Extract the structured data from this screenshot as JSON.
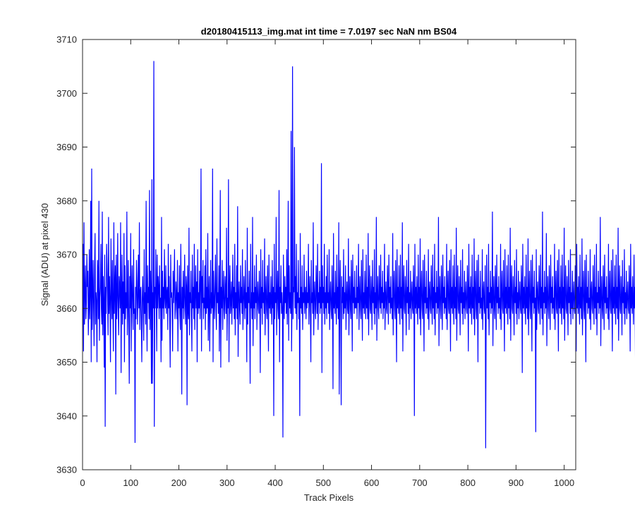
{
  "chart_data": {
    "type": "line",
    "title": "d20180415113_img.mat int time = 7.0197 sec  NaN nm BS04",
    "xlabel": "Track Pixels",
    "ylabel": "Signal (ADU) at pixel 430",
    "xlim": [
      0,
      1024
    ],
    "ylim": [
      3630,
      3710
    ],
    "xticks": [
      "0",
      "100",
      "200",
      "300",
      "400",
      "500",
      "600",
      "700",
      "800",
      "900",
      "1000"
    ],
    "yticks": [
      "3630",
      "3640",
      "3650",
      "3660",
      "3670",
      "3680",
      "3690",
      "3700",
      "3710"
    ],
    "grid": false,
    "series": [
      {
        "color": "#0000ff",
        "x_start": 1,
        "x_step": 1,
        "values": [
          3672,
          3652,
          3676,
          3657,
          3663,
          3668,
          3658,
          3661,
          3670,
          3664,
          3667,
          3655,
          3660,
          3671,
          3658,
          3663,
          3680,
          3650,
          3686,
          3656,
          3662,
          3669,
          3660,
          3653,
          3668,
          3674,
          3657,
          3663,
          3661,
          3650,
          3669,
          3666,
          3658,
          3680,
          3654,
          3662,
          3664,
          3672,
          3660,
          3657,
          3678,
          3655,
          3666,
          3661,
          3649,
          3670,
          3638,
          3664,
          3659,
          3672,
          3668,
          3662,
          3655,
          3677,
          3659,
          3666,
          3661,
          3650,
          3673,
          3663,
          3658,
          3669,
          3660,
          3652,
          3676,
          3659,
          3664,
          3668,
          3644,
          3670,
          3658,
          3662,
          3674,
          3660,
          3655,
          3666,
          3664,
          3660,
          3676,
          3648,
          3662,
          3670,
          3657,
          3665,
          3659,
          3674,
          3650,
          3668,
          3658,
          3663,
          3660,
          3678,
          3655,
          3661,
          3669,
          3657,
          3646,
          3666,
          3660,
          3674,
          3652,
          3663,
          3668,
          3660,
          3656,
          3671,
          3659,
          3660,
          3635,
          3664,
          3658,
          3669,
          3665,
          3657,
          3662,
          3670,
          3660,
          3676,
          3656,
          3663,
          3664,
          3658,
          3650,
          3662,
          3666,
          3660,
          3654,
          3671,
          3659,
          3663,
          3657,
          3680,
          3660,
          3652,
          3668,
          3661,
          3664,
          3658,
          3682,
          3656,
          3667,
          3662,
          3646,
          3684,
          3646,
          3663,
          3660,
          3706,
          3638,
          3664,
          3660,
          3671,
          3663,
          3652,
          3670,
          3660,
          3666,
          3664,
          3658,
          3668,
          3660,
          3662,
          3650,
          3677,
          3654,
          3667,
          3660,
          3664,
          3658,
          3671,
          3662,
          3660,
          3668,
          3659,
          3663,
          3664,
          3656,
          3672,
          3660,
          3666,
          3658,
          3649,
          3670,
          3662,
          3663,
          3660,
          3652,
          3667,
          3661,
          3664,
          3671,
          3658,
          3660,
          3665,
          3662,
          3658,
          3669,
          3652,
          3663,
          3660,
          3668,
          3659,
          3656,
          3672,
          3662,
          3644,
          3664,
          3660,
          3667,
          3658,
          3662,
          3670,
          3660,
          3657,
          3666,
          3664,
          3642,
          3668,
          3660,
          3658,
          3675,
          3655,
          3663,
          3661,
          3667,
          3659,
          3652,
          3670,
          3660,
          3664,
          3658,
          3672,
          3656,
          3662,
          3668,
          3660,
          3665,
          3650,
          3671,
          3659,
          3663,
          3660,
          3667,
          3658,
          3664,
          3686,
          3652,
          3666,
          3661,
          3669,
          3658,
          3662,
          3660,
          3668,
          3656,
          3671,
          3659,
          3664,
          3660,
          3674,
          3654,
          3662,
          3666,
          3652,
          3661,
          3669,
          3659,
          3663,
          3660,
          3686,
          3650,
          3667,
          3662,
          3658,
          3664,
          3670,
          3660,
          3656,
          3673,
          3661,
          3663,
          3659,
          3668,
          3652,
          3662,
          3682,
          3649,
          3664,
          3660,
          3669,
          3656,
          3662,
          3667,
          3660,
          3658,
          3666,
          3663,
          3659,
          3675,
          3654,
          3662,
          3660,
          3684,
          3650,
          3663,
          3668,
          3659,
          3661,
          3665,
          3657,
          3662,
          3670,
          3660,
          3664,
          3658,
          3672,
          3655,
          3663,
          3660,
          3668,
          3658,
          3679,
          3651,
          3662,
          3665,
          3660,
          3657,
          3668,
          3661,
          3664,
          3659,
          3671,
          3656,
          3660,
          3666,
          3662,
          3658,
          3669,
          3660,
          3663,
          3650,
          3675,
          3657,
          3664,
          3661,
          3667,
          3659,
          3646,
          3672,
          3660,
          3663,
          3658,
          3677,
          3653,
          3663,
          3660,
          3668,
          3658,
          3664,
          3661,
          3670,
          3656,
          3662,
          3665,
          3660,
          3659,
          3667,
          3662,
          3648,
          3671,
          3660,
          3664,
          3657,
          3669,
          3661,
          3663,
          3659,
          3673,
          3655,
          3662,
          3666,
          3660,
          3658,
          3668,
          3662,
          3652,
          3670,
          3660,
          3663,
          3659,
          3666,
          3661,
          3657,
          3669,
          3660,
          3664,
          3640,
          3672,
          3658,
          3663,
          3661,
          3677,
          3655,
          3662,
          3667,
          3660,
          3658,
          3682,
          3650,
          3664,
          3661,
          3668,
          3659,
          3663,
          3660,
          3636,
          3670,
          3662,
          3658,
          3666,
          3661,
          3664,
          3659,
          3671,
          3657,
          3663,
          3680,
          3654,
          3668,
          3660,
          3663,
          3659,
          3693,
          3652,
          3662,
          3705,
          3658,
          3664,
          3663,
          3690,
          3660,
          3666,
          3659,
          3672,
          3656,
          3663,
          3661,
          3669,
          3658,
          3662,
          3640,
          3674,
          3660,
          3664,
          3659,
          3668,
          3656,
          3663,
          3661,
          3670,
          3659,
          3662,
          3664,
          3658,
          3667,
          3660,
          3663,
          3661,
          3672,
          3657,
          3662,
          3666,
          3660,
          3650,
          3669,
          3661,
          3663,
          3659,
          3676,
          3655,
          3662,
          3665,
          3660,
          3658,
          3668,
          3663,
          3659,
          3672,
          3656,
          3663,
          3661,
          3667,
          3659,
          3664,
          3660,
          3687,
          3648,
          3668,
          3661,
          3664,
          3659,
          3672,
          3657,
          3663,
          3660,
          3666,
          3658,
          3670,
          3661,
          3663,
          3659,
          3671,
          3656,
          3662,
          3665,
          3660,
          3658,
          3668,
          3662,
          3645,
          3674,
          3660,
          3663,
          3659,
          3667,
          3661,
          3657,
          3670,
          3660,
          3664,
          3658,
          3676,
          3644,
          3663,
          3669,
          3660,
          3642,
          3666,
          3661,
          3664,
          3658,
          3671,
          3659,
          3663,
          3660,
          3668,
          3656,
          3662,
          3665,
          3660,
          3659,
          3673,
          3655,
          3662,
          3666,
          3660,
          3658,
          3669,
          3663,
          3652,
          3670,
          3661,
          3664,
          3659,
          3667,
          3660,
          3662,
          3660,
          3668,
          3658,
          3664,
          3661,
          3672,
          3656,
          3662,
          3666,
          3660,
          3658,
          3669,
          3662,
          3654,
          3671,
          3660,
          3663,
          3659,
          3667,
          3661,
          3658,
          3670,
          3660,
          3664,
          3658,
          3674,
          3655,
          3663,
          3668,
          3660,
          3659,
          3666,
          3662,
          3656,
          3669,
          3661,
          3664,
          3659,
          3671,
          3657,
          3663,
          3660,
          3677,
          3654,
          3662,
          3666,
          3660,
          3658,
          3668,
          3662,
          3660,
          3670,
          3659,
          3664,
          3661,
          3667,
          3658,
          3663,
          3660,
          3672,
          3656,
          3662,
          3665,
          3660,
          3659,
          3668,
          3663,
          3657,
          3670,
          3661,
          3664,
          3659,
          3666,
          3660,
          3662,
          3658,
          3674,
          3655,
          3663,
          3667,
          3660,
          3658,
          3669,
          3662,
          3650,
          3671,
          3660,
          3664,
          3659,
          3668,
          3661,
          3657,
          3670,
          3660,
          3664,
          3658,
          3676,
          3652,
          3663,
          3668,
          3660,
          3659,
          3666,
          3662,
          3655,
          3669,
          3661,
          3664,
          3659,
          3672,
          3656,
          3663,
          3660,
          3667,
          3658,
          3662,
          3665,
          3660,
          3659,
          3668,
          3663,
          3640,
          3672,
          3660,
          3664,
          3659,
          3666,
          3661,
          3657,
          3670,
          3660,
          3664,
          3658,
          3673,
          3655,
          3663,
          3667,
          3660,
          3658,
          3669,
          3662,
          3652,
          3670,
          3661,
          3664,
          3659,
          3667,
          3660,
          3662,
          3658,
          3671,
          3656,
          3663,
          3665,
          3660,
          3659,
          3668,
          3662,
          3657,
          3670,
          3660,
          3664,
          3658,
          3672,
          3655,
          3663,
          3661,
          3667,
          3659,
          3664,
          3660,
          3677,
          3653,
          3662,
          3666,
          3660,
          3658,
          3668,
          3663,
          3656,
          3670,
          3661,
          3664,
          3659,
          3666,
          3660,
          3662,
          3658,
          3672,
          3656,
          3663,
          3667,
          3660,
          3659,
          3669,
          3662,
          3652,
          3671,
          3660,
          3664,
          3659,
          3668,
          3661,
          3657,
          3670,
          3660,
          3664,
          3658,
          3675,
          3654,
          3663,
          3668,
          3660,
          3659,
          3666,
          3662,
          3655,
          3669,
          3661,
          3664,
          3659,
          3671,
          3657,
          3663,
          3660,
          3667,
          3658,
          3662,
          3665,
          3660,
          3659,
          3668,
          3663,
          3652,
          3672,
          3660,
          3664,
          3659,
          3666,
          3661,
          3657,
          3670,
          3660,
          3664,
          3658,
          3673,
          3655,
          3663,
          3667,
          3660,
          3658,
          3669,
          3662,
          3650,
          3670,
          3661,
          3664,
          3659,
          3667,
          3660,
          3662,
          3658,
          3671,
          3656,
          3663,
          3665,
          3660,
          3659,
          3668,
          3634,
          3657,
          3670,
          3660,
          3664,
          3658,
          3672,
          3655,
          3663,
          3661,
          3667,
          3659,
          3664,
          3660,
          3678,
          3653,
          3662,
          3666,
          3660,
          3658,
          3668,
          3663,
          3656,
          3670,
          3661,
          3664,
          3659,
          3666,
          3660,
          3662,
          3658,
          3672,
          3656,
          3663,
          3667,
          3660,
          3659,
          3669,
          3662,
          3652,
          3671,
          3660,
          3664,
          3659,
          3668,
          3661,
          3657,
          3670,
          3660,
          3664,
          3658,
          3675,
          3654,
          3663,
          3668,
          3660,
          3659,
          3666,
          3662,
          3655,
          3669,
          3661,
          3664,
          3659,
          3671,
          3657,
          3663,
          3660,
          3667,
          3658,
          3662,
          3665,
          3660,
          3659,
          3668,
          3663,
          3648,
          3672,
          3660,
          3664,
          3659,
          3666,
          3661,
          3657,
          3670,
          3660,
          3664,
          3658,
          3673,
          3655,
          3663,
          3667,
          3660,
          3658,
          3669,
          3662,
          3652,
          3670,
          3661,
          3664,
          3659,
          3667,
          3660,
          3662,
          3637,
          3671,
          3656,
          3663,
          3665,
          3660,
          3659,
          3668,
          3662,
          3657,
          3670,
          3660,
          3664,
          3658,
          3678,
          3655,
          3663,
          3661,
          3667,
          3659,
          3664,
          3660,
          3674,
          3653,
          3662,
          3666,
          3660,
          3658,
          3668,
          3663,
          3656,
          3670,
          3661,
          3664,
          3659,
          3666,
          3660,
          3662,
          3658,
          3672,
          3656,
          3663,
          3667,
          3660,
          3659,
          3669,
          3662,
          3652,
          3671,
          3660,
          3664,
          3659,
          3668,
          3661,
          3657,
          3670,
          3660,
          3664,
          3658,
          3675,
          3654,
          3663,
          3668,
          3660,
          3659,
          3666,
          3662,
          3655,
          3669,
          3661,
          3664,
          3659,
          3671,
          3657,
          3663,
          3660,
          3667,
          3658,
          3662,
          3665,
          3660,
          3659,
          3668,
          3663,
          3652,
          3672,
          3660,
          3664,
          3659,
          3666,
          3661,
          3657,
          3670,
          3660,
          3664,
          3658,
          3673,
          3655,
          3663,
          3667,
          3660,
          3658,
          3669,
          3662,
          3650,
          3670,
          3661,
          3664,
          3659,
          3667,
          3660,
          3662,
          3658,
          3671,
          3656,
          3663,
          3665,
          3660,
          3659,
          3668,
          3662,
          3657,
          3670,
          3660,
          3664,
          3658,
          3672,
          3655,
          3663,
          3661,
          3667,
          3659,
          3664,
          3660,
          3677,
          3653,
          3662,
          3666,
          3660,
          3658,
          3668,
          3663,
          3656,
          3670,
          3661,
          3664,
          3659,
          3666,
          3660,
          3662,
          3658,
          3672,
          3656,
          3663,
          3667,
          3660,
          3659,
          3669,
          3662,
          3652,
          3671,
          3660,
          3664,
          3659,
          3668,
          3661,
          3657,
          3670,
          3660,
          3664,
          3658,
          3675,
          3654,
          3663,
          3668,
          3660,
          3659,
          3666,
          3662,
          3655,
          3669,
          3661,
          3664,
          3659,
          3671,
          3657,
          3663,
          3660,
          3667,
          3658,
          3662,
          3665,
          3660,
          3659,
          3668,
          3663,
          3652,
          3672,
          3660,
          3664,
          3659,
          3666,
          3661,
          3657,
          3670,
          3660,
          3664,
          3650,
          3678,
          3637
        ]
      }
    ]
  }
}
